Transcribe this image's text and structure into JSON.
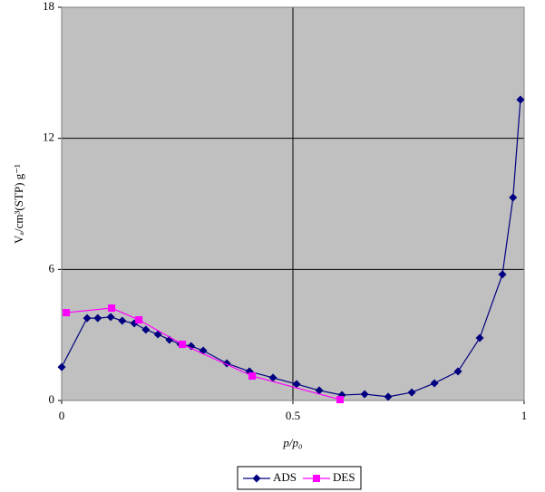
{
  "chart_data": {
    "type": "line",
    "x_label": "p/p₀",
    "y_label": "Vₐ/cm³(STP) g⁻¹",
    "xlim": [
      0,
      1
    ],
    "xticks": [
      0,
      0.5,
      1
    ],
    "ylim": [
      0,
      18
    ],
    "yticks": [
      0,
      6,
      12,
      18
    ],
    "grid": true,
    "legend": "bottom",
    "series": [
      {
        "name": "ADS",
        "color": "#000080",
        "marker": "diamond",
        "x": [
          0,
          0.055,
          0.078,
          0.106,
          0.131,
          0.157,
          0.182,
          0.208,
          0.233,
          0.257,
          0.28,
          0.306,
          0.357,
          0.406,
          0.457,
          0.508,
          0.557,
          0.606,
          0.655,
          0.706,
          0.757,
          0.806,
          0.857,
          0.904,
          0.953,
          0.976,
          0.992
        ],
        "values": [
          1.53,
          3.77,
          3.77,
          3.82,
          3.65,
          3.53,
          3.24,
          3.03,
          2.78,
          2.57,
          2.49,
          2.28,
          1.7,
          1.33,
          1.04,
          0.75,
          0.46,
          0.25,
          0.29,
          0.17,
          0.37,
          0.79,
          1.33,
          2.86,
          5.77,
          9.29,
          13.77
        ]
      },
      {
        "name": "DES",
        "color": "#ff00ff",
        "marker": "square",
        "x": [
          0.01,
          0.108,
          0.167,
          0.261,
          0.412,
          0.602
        ],
        "values": [
          4.02,
          4.23,
          3.69,
          2.57,
          1.12,
          0.04
        ]
      }
    ]
  }
}
